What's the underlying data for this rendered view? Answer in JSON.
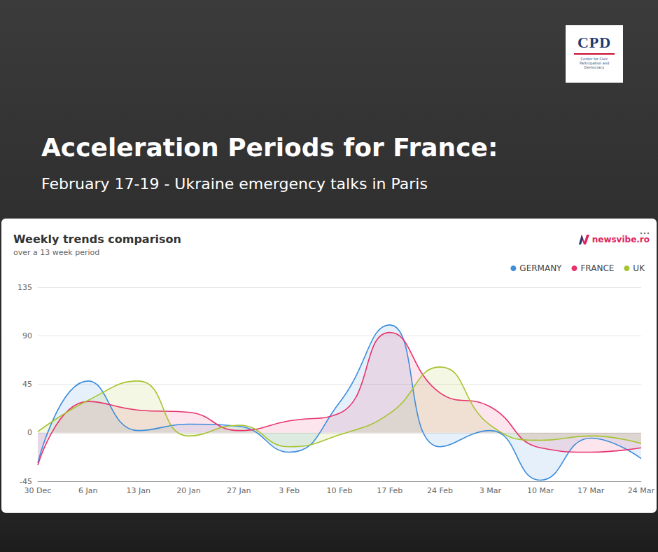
{
  "header": {
    "title": "Acceleration Periods for France:",
    "subtitle": "February 17-19 - Ukraine emergency talks in Paris"
  },
  "logo": {
    "text": "CPD",
    "caption": "Center for Civic Participation and Democracy"
  },
  "brand": "newsvibe.ro",
  "chart_data": {
    "type": "line",
    "title": "Weekly trends comparison",
    "subtitle": "over a 13 week period",
    "categories": [
      "30 Dec",
      "6 Jan",
      "13 Jan",
      "20 Jan",
      "27 Jan",
      "3 Feb",
      "10 Feb",
      "17 Feb",
      "24 Feb",
      "3 Mar",
      "10 Mar",
      "17 Mar",
      "24 Mar"
    ],
    "series": [
      {
        "name": "GERMANY",
        "color": "#3e8ddb",
        "values": [
          -28,
          48,
          2,
          8,
          6,
          -18,
          28,
          100,
          -13,
          2,
          -44,
          -5,
          -24
        ]
      },
      {
        "name": "FRANCE",
        "color": "#e8336d",
        "values": [
          -30,
          29,
          21,
          19,
          2,
          11,
          18,
          93,
          37,
          24,
          -14,
          -18,
          -14
        ]
      },
      {
        "name": "UK",
        "color": "#a6c32f",
        "values": [
          1,
          30,
          48,
          -3,
          7,
          -13,
          -2,
          18,
          61,
          7,
          -7,
          -3,
          -10
        ]
      }
    ],
    "ylim": [
      -45,
      135
    ],
    "yticks": [
      -45,
      0,
      45,
      90,
      135
    ],
    "grid": true,
    "legend": "top-right"
  }
}
